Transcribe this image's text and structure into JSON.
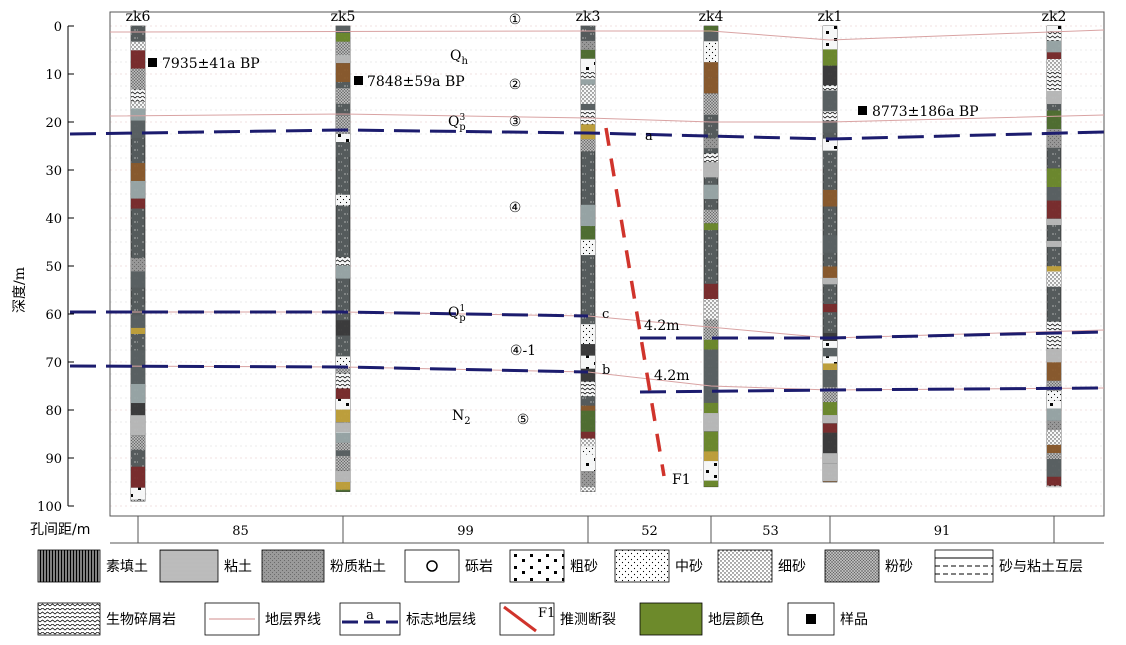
{
  "chart_data": {
    "type": "diagram",
    "ylabel": "深度/m",
    "ylim": [
      0,
      100
    ],
    "yticks": [
      0,
      10,
      20,
      30,
      40,
      50,
      60,
      70,
      80,
      90,
      100
    ],
    "boreholes": [
      {
        "name": "zk6",
        "bottom": 99
      },
      {
        "name": "zk5",
        "bottom": 97
      },
      {
        "name": "zk3",
        "bottom": 97
      },
      {
        "name": "zk4",
        "bottom": 96
      },
      {
        "name": "zk1",
        "bottom": 95
      },
      {
        "name": "zk2",
        "bottom": 96
      }
    ],
    "spacing": [
      "85",
      "99",
      "52",
      "53",
      "91"
    ]
  },
  "annotations": {
    "layers": [
      "①",
      "②",
      "③",
      "④",
      "④-1",
      "⑤"
    ],
    "qh_main": "Q",
    "qh_sub": "h",
    "qp3_main": "Q",
    "qp3_sup": "3",
    "qp3_sub": "p",
    "qp1_main": "Q",
    "qp1_sup": "1",
    "qp1_sub": "p",
    "n2_main": "N",
    "n2_sub": "2",
    "marker_a": "a",
    "marker_b": "b",
    "marker_c": "c",
    "offset_upper": "4.2m",
    "offset_lower": "4.2m",
    "fault_label": "F1"
  },
  "samples": [
    {
      "label": "7935±41a BP"
    },
    {
      "label": "7848±59a BP"
    },
    {
      "label": "8773±186a BP"
    }
  ],
  "spacing": {
    "label": "孔间距/m"
  },
  "legend": [
    "素填土",
    "粘土",
    "粉质粘土",
    "砾岩",
    "粗砂",
    "中砂",
    "细砂",
    "粉砂",
    "砂与粘土互层",
    "生物碎屑岩",
    "地层界线",
    "标志地层线",
    "推测断裂",
    "地层颜色",
    "样品"
  ],
  "legend_symbols": {
    "marker": "a",
    "fault": "F1"
  },
  "colors": {
    "boundary": "#d9a3a3",
    "marker": "#1c1c6e",
    "fault": "#d0342c",
    "stratum_color": "#6d8a2b"
  }
}
